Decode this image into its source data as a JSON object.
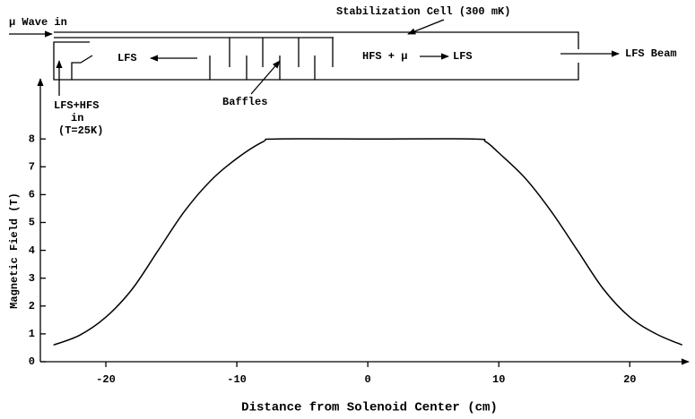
{
  "chart_data": {
    "type": "line",
    "xlabel": "Distance from Solenoid Center (cm)",
    "ylabel": "Magnetic Field (T)",
    "annotations": [
      "μ Wave in",
      "Stabilization Cell (300 mK)",
      "LFS",
      "HFS + μ",
      "LFS",
      "LFS Beam",
      "Baffles",
      "LFS+HFS",
      "in",
      "(T=25K)"
    ],
    "x": [
      -24,
      -22,
      -20,
      -18,
      -16,
      -14,
      -12,
      -10,
      -8,
      -7,
      0,
      8,
      9,
      10,
      12,
      14,
      16,
      18,
      20,
      22,
      24
    ],
    "values": [
      0.6,
      0.95,
      1.6,
      2.6,
      4.0,
      5.4,
      6.5,
      7.3,
      7.9,
      8,
      8,
      8,
      7.9,
      7.5,
      6.6,
      5.4,
      4.0,
      2.6,
      1.6,
      1.0,
      0.6
    ],
    "color": "#000000",
    "xlim": [
      -25,
      24.5
    ],
    "xticks": [
      -20,
      -10,
      0,
      10,
      20
    ],
    "ylim": [
      0,
      10
    ],
    "yticks": [
      0,
      1,
      2,
      3,
      4,
      5,
      6,
      7,
      8
    ]
  }
}
